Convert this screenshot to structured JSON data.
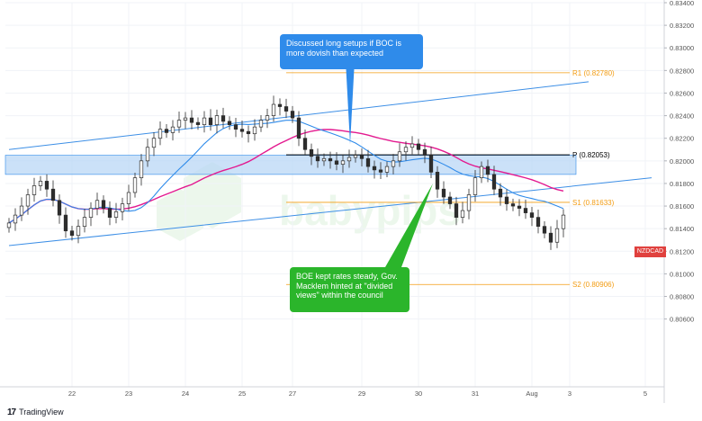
{
  "chart_data": {
    "type": "candlestick",
    "symbol": "NZDCAD",
    "y_axis": {
      "min": 0.8,
      "max": 0.834,
      "ticks": [
        "0.83400",
        "0.83200",
        "0.83000",
        "0.82800",
        "0.82600",
        "0.82400",
        "0.82200",
        "0.82000",
        "0.81800",
        "0.81600",
        "0.81400",
        "0.81200",
        "0.81000",
        "0.80800",
        "0.80600"
      ]
    },
    "x_axis": {
      "ticks": [
        {
          "label": "22",
          "index": 10
        },
        {
          "label": "23",
          "index": 19
        },
        {
          "label": "24",
          "index": 28
        },
        {
          "label": "25",
          "index": 37
        },
        {
          "label": "27",
          "index": 45
        },
        {
          "label": "29",
          "index": 56
        },
        {
          "label": "30",
          "index": 65
        },
        {
          "label": "31",
          "index": 74
        },
        {
          "label": "Aug",
          "index": 83
        },
        {
          "label": "3",
          "index": 89
        },
        {
          "label": "5",
          "index": 101
        }
      ]
    },
    "candles_close": [
      0.8145,
      0.8152,
      0.816,
      0.817,
      0.8178,
      0.8182,
      0.8175,
      0.8165,
      0.8152,
      0.8138,
      0.8134,
      0.8142,
      0.815,
      0.8158,
      0.8165,
      0.8158,
      0.815,
      0.8155,
      0.8162,
      0.8172,
      0.8185,
      0.82,
      0.8212,
      0.822,
      0.8228,
      0.8225,
      0.823,
      0.8236,
      0.8238,
      0.8234,
      0.8232,
      0.8238,
      0.8232,
      0.824,
      0.8235,
      0.8232,
      0.8228,
      0.8226,
      0.8224,
      0.823,
      0.8236,
      0.824,
      0.825,
      0.8248,
      0.8244,
      0.8238,
      0.822,
      0.821,
      0.8204,
      0.82,
      0.8202,
      0.82,
      0.8197,
      0.82,
      0.8203,
      0.8205,
      0.8202,
      0.8195,
      0.8192,
      0.819,
      0.8195,
      0.82,
      0.8208,
      0.8212,
      0.8215,
      0.821,
      0.8205,
      0.819,
      0.8175,
      0.8168,
      0.8162,
      0.815,
      0.8156,
      0.817,
      0.8185,
      0.8195,
      0.8188,
      0.8175,
      0.8168,
      0.8162,
      0.816,
      0.8158,
      0.8154,
      0.815,
      0.8142,
      0.8136,
      0.8128,
      0.814,
      0.8152
    ],
    "pivot_levels": [
      {
        "name": "R1",
        "value": 0.8278,
        "label": "R1 (0.82780)",
        "color": "#f39c12"
      },
      {
        "name": "P",
        "value": 0.82053,
        "label": "P (0.82053)",
        "color": "#000000"
      },
      {
        "name": "S1",
        "value": 0.81633,
        "label": "S1 (0.81633)",
        "color": "#f39c12"
      },
      {
        "name": "S2",
        "value": 0.80906,
        "label": "S2 (0.80906)",
        "color": "#f39c12"
      }
    ],
    "zone": {
      "from": 0.8188,
      "to": 0.8205,
      "color": "#b9d7f5"
    },
    "channel": {
      "upper": [
        {
          "index": 0,
          "value": 0.821
        },
        {
          "index": 92,
          "value": 0.827
        }
      ],
      "lower": [
        {
          "index": 0,
          "value": 0.8125
        },
        {
          "index": 102,
          "value": 0.8185
        }
      ]
    },
    "annotations": [
      {
        "text": "Discussed long setups if BOC is more dovish than expected",
        "color": "#2f8bea",
        "points_to_index": 54
      },
      {
        "text": "BOE kept rates steady, Gov. Macklem hinted at \"divided views\" within the council",
        "color": "#2bb52b",
        "points_to_index": 67
      }
    ],
    "colors": {
      "up": "#2d2d2d",
      "down": "#2d2d2d",
      "ma_fast": "#2f8bea",
      "ma_slow": "#e3198f",
      "price_tag": "#e0413e"
    }
  },
  "callouts": {
    "boc": "Discussed long setups if BOC is more dovish than expected",
    "boe": "BOE kept rates steady, Gov. Macklem hinted at \"divided views\" within the council"
  },
  "price_tag_label": "NZDCAD",
  "footer": {
    "logo": "17",
    "brand": "TradingView"
  }
}
